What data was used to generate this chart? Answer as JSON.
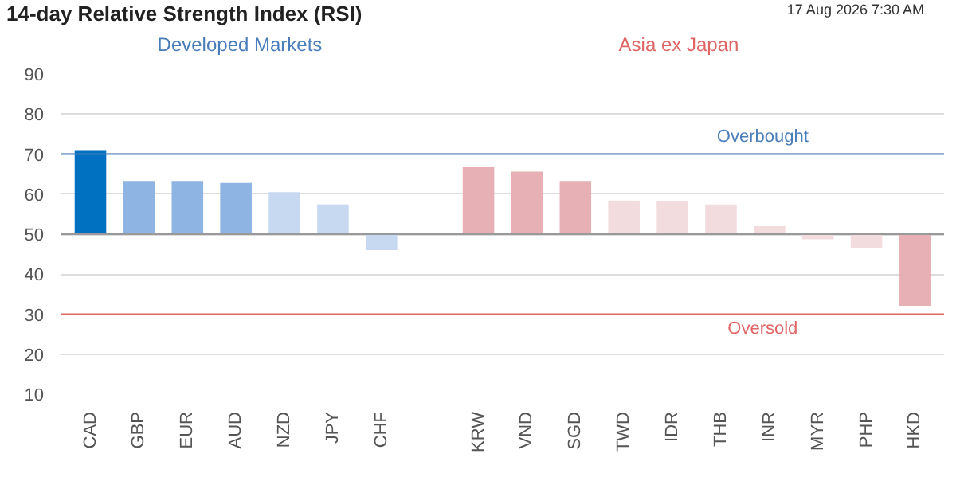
{
  "chart_data": {
    "type": "bar",
    "title": "14-day Relative Strength Index (RSI)",
    "subtitle": "17 Aug 2026 7:30 AM",
    "categories": [
      "CAD",
      "GBP",
      "EUR",
      "AUD",
      "NZD",
      "JPY",
      "CHF",
      null,
      "KRW",
      "VND",
      "SGD",
      "TWD",
      "IDR",
      "THB",
      "INR",
      "MYR",
      "PHP",
      "HKD"
    ],
    "base": [
      50,
      50,
      50,
      50,
      50,
      50,
      50,
      null,
      50,
      50,
      50,
      50,
      50,
      50,
      50,
      50,
      50,
      50
    ],
    "values": [
      21.0,
      13.3,
      13.3,
      12.8,
      10.5,
      7.4,
      -4.0,
      null,
      16.7,
      15.6,
      13.3,
      8.4,
      8.2,
      7.4,
      2.0,
      -1.3,
      -3.4,
      -17.9
    ],
    "colors": [
      "#0070c0",
      "#8eb4e3",
      "#8eb4e3",
      "#8eb4e3",
      "#c6d9f1",
      "#c6d9f1",
      "#c6d9f1",
      null,
      "#e6b0b4",
      "#e6b0b4",
      "#e6b0b4",
      "#f2dcdd",
      "#f2dcdd",
      "#f2dcdd",
      "#f2dcdd",
      "#f2dcdd",
      "#f2dcdd",
      "#e6b0b4"
    ],
    "ylim": [
      10,
      90
    ],
    "yticks": [
      10,
      20,
      30,
      40,
      50,
      60,
      70,
      80,
      90
    ],
    "grid": "y",
    "ref_lines": [
      {
        "axis": "y",
        "value": 50,
        "label": null,
        "color": "#999999"
      },
      {
        "axis": "y",
        "value": 70,
        "label": "Overbought",
        "color": "#4a7ebb"
      },
      {
        "axis": "y",
        "value": 30,
        "label": "Oversold",
        "color": "#e06666"
      }
    ],
    "annotations": [
      "Developed Markets",
      "Asia ex Japan"
    ]
  }
}
